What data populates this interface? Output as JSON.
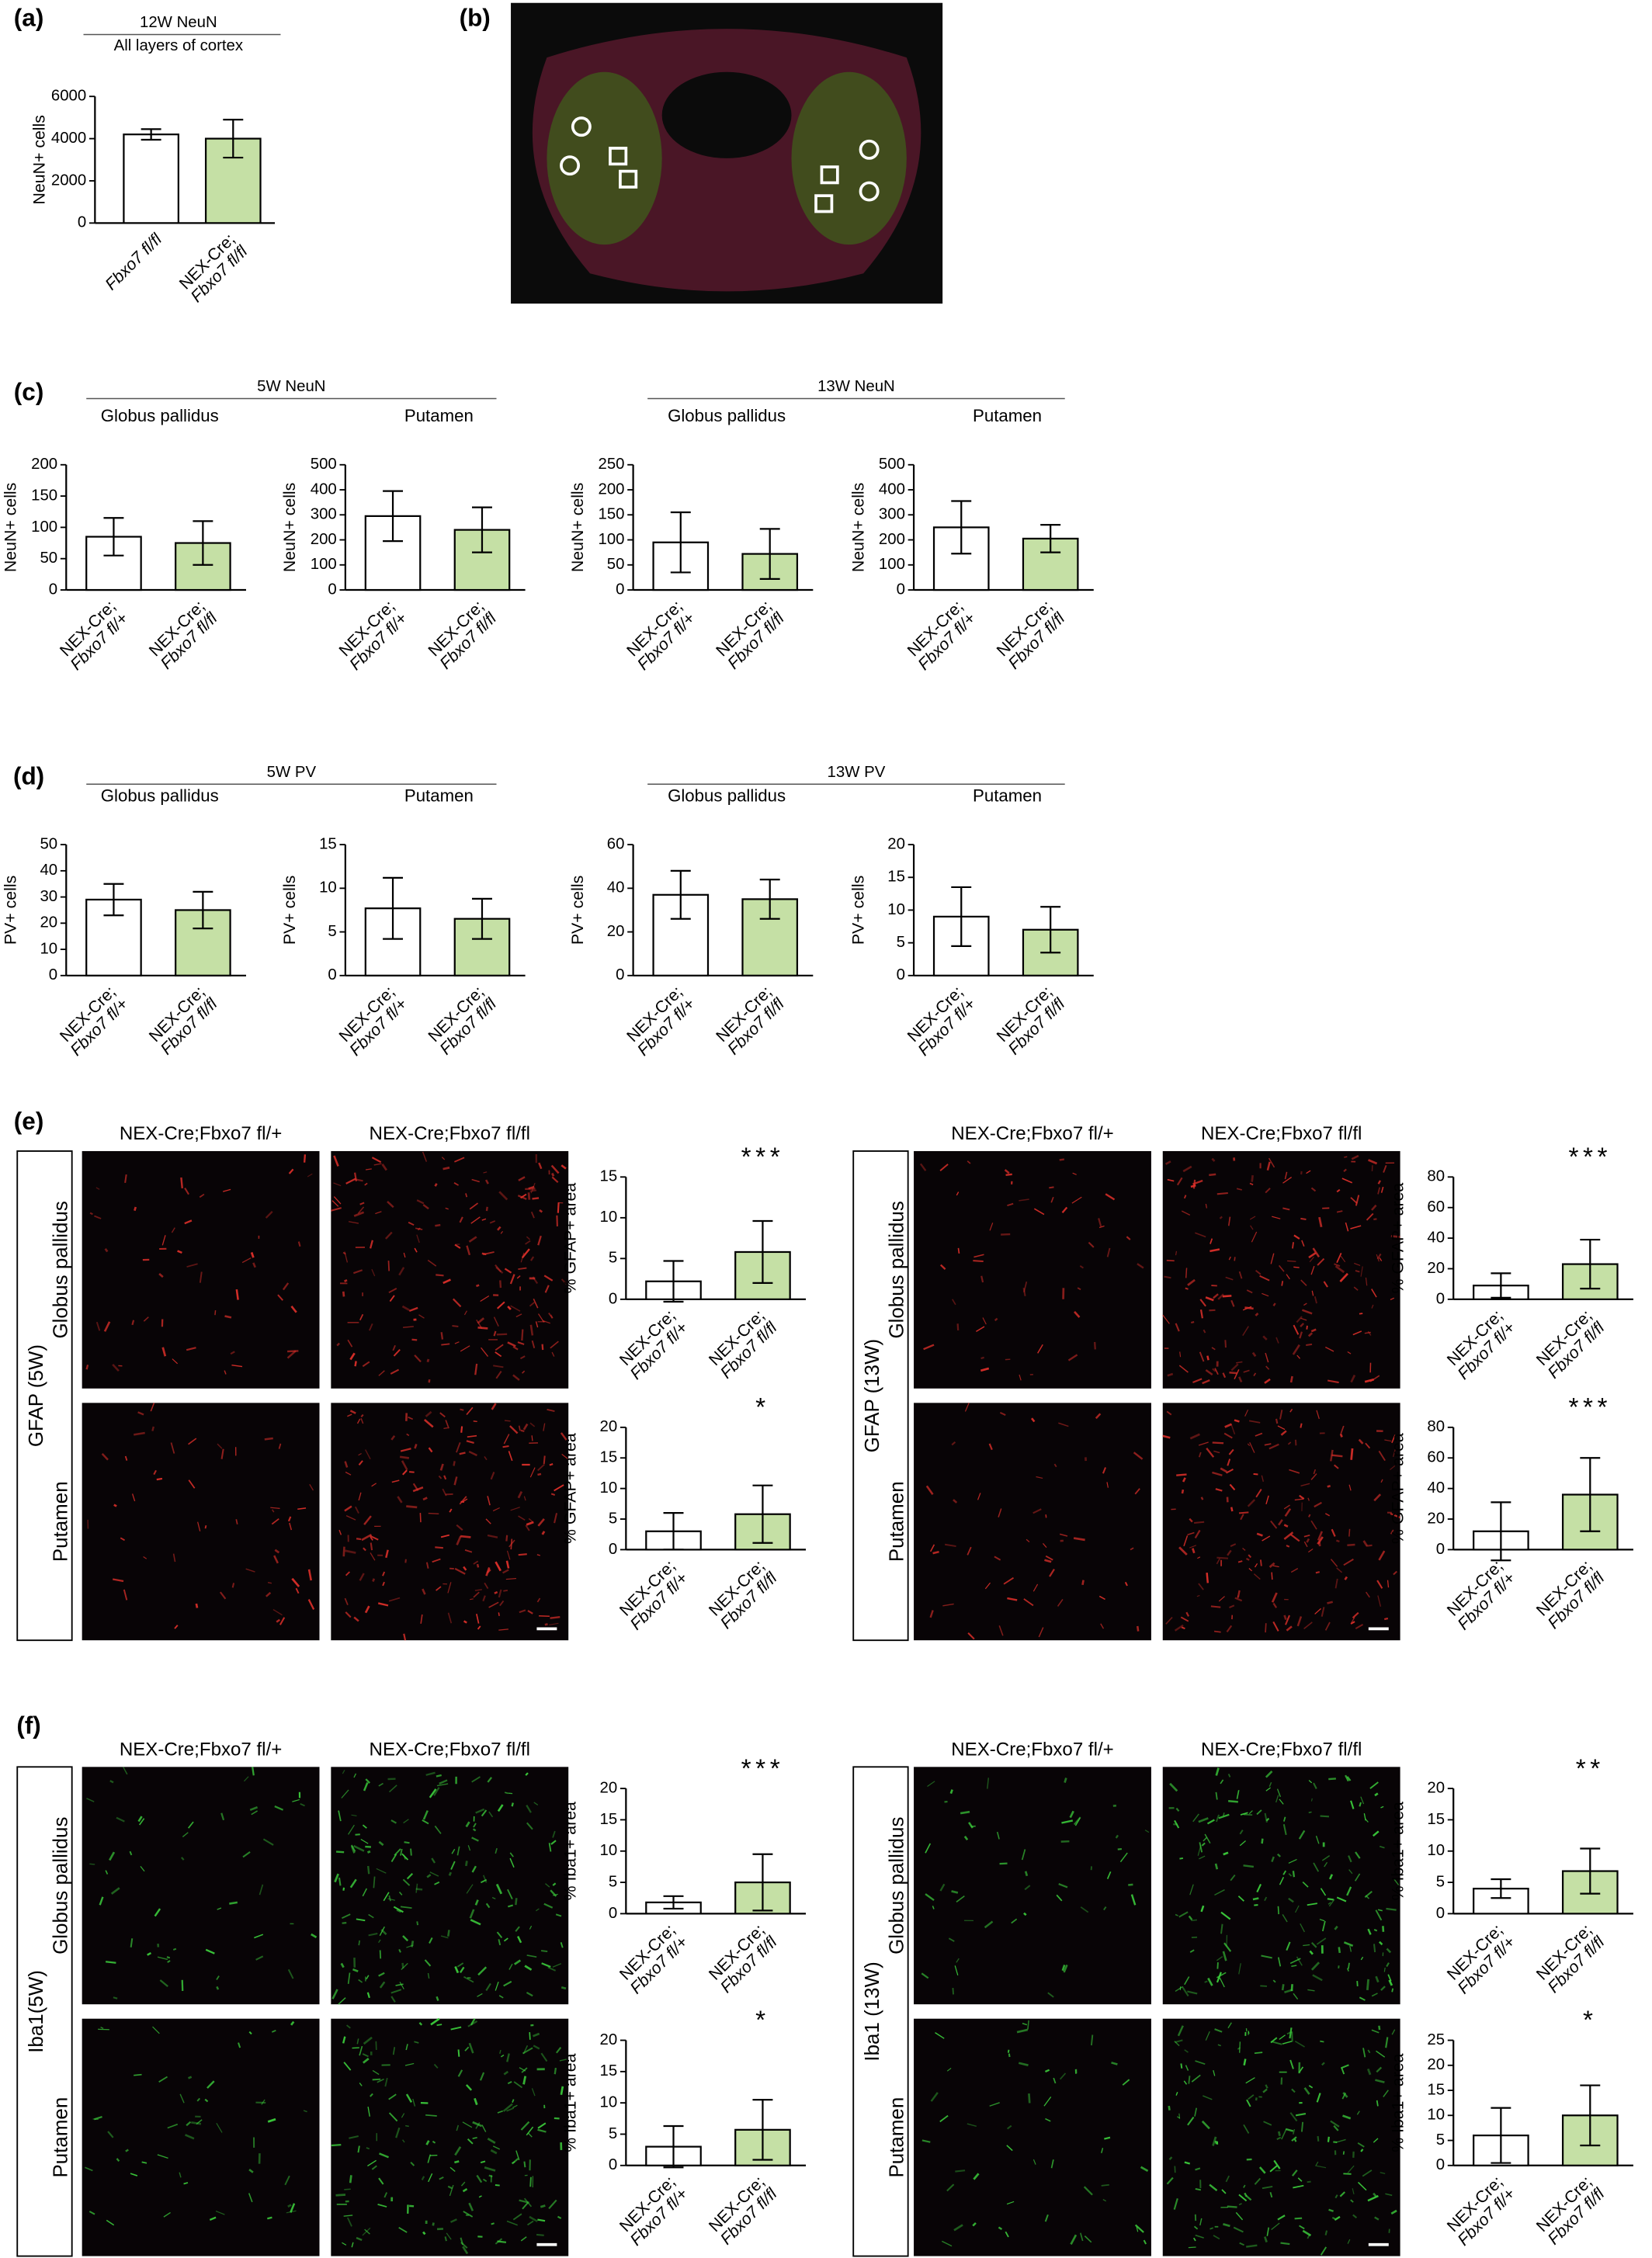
{
  "figure": {
    "panel_labels": [
      "(a)",
      "(b)",
      "(c)",
      "(d)",
      "(e)",
      "(f)"
    ],
    "headers": [
      "5W NeuN",
      "13W NeuN",
      "5W PV",
      "13W PV"
    ],
    "image_panels": [
      {
        "label": "GFAP (5W)",
        "columns": [
          "NEX-Cre;Fbxo7 fl/+",
          "NEX-Cre;Fbxo7 fl/fl"
        ],
        "rows": [
          "Globus pallidus",
          "Putamen"
        ]
      },
      {
        "label": "GFAP (13W)",
        "columns": [
          "NEX-Cre;Fbxo7 fl/+",
          "NEX-Cre;Fbxo7 fl/fl"
        ],
        "rows": [
          "Globus pallidus",
          "Putamen"
        ]
      },
      {
        "label": "Iba1(5W)",
        "columns": [
          "NEX-Cre;Fbxo7 fl/+",
          "NEX-Cre;Fbxo7 fl/fl"
        ],
        "rows": [
          "Globus pallidus",
          "Putamen"
        ]
      },
      {
        "label": "Iba1 (13W)",
        "columns": [
          "NEX-Cre;Fbxo7 fl/+",
          "NEX-Cre;Fbxo7 fl/fl"
        ],
        "rows": [
          "Globus pallidus",
          "Putamen"
        ]
      }
    ]
  },
  "chart_data": [
    {
      "type": "bar",
      "title": "12W NeuN",
      "subtitle": "All layers of cortex",
      "ylabel": "NeuN+ cells",
      "categories": [
        [
          "Fbxo7 fl/fl"
        ],
        [
          "NEX-Cre;",
          "Fbxo7 fl/fl"
        ]
      ],
      "values": [
        4200,
        4000
      ],
      "errors": [
        250,
        900
      ],
      "colors": [
        "#ffffff",
        "#c5e0a5"
      ],
      "ylim": [
        0,
        6000
      ],
      "yticks": [
        0,
        2000,
        4000,
        6000
      ]
    },
    {
      "type": "bar",
      "subtitle": "Globus pallidus",
      "ylabel": "NeuN+ cells",
      "categories": [
        [
          "NEX-Cre;",
          "Fbxo7 fl/+"
        ],
        [
          "NEX-Cre;",
          "Fbxo7 fl/fl"
        ]
      ],
      "values": [
        85,
        75
      ],
      "errors": [
        30,
        35
      ],
      "colors": [
        "#ffffff",
        "#c5e0a5"
      ],
      "ylim": [
        0,
        200
      ],
      "yticks": [
        0,
        50,
        100,
        150,
        200
      ]
    },
    {
      "type": "bar",
      "subtitle": "Putamen",
      "ylabel": "NeuN+ cells",
      "categories": [
        [
          "NEX-Cre;",
          "Fbxo7 fl/+"
        ],
        [
          "NEX-Cre;",
          "Fbxo7 fl/fl"
        ]
      ],
      "values": [
        295,
        240
      ],
      "errors": [
        100,
        90
      ],
      "colors": [
        "#ffffff",
        "#c5e0a5"
      ],
      "ylim": [
        0,
        500
      ],
      "yticks": [
        0,
        100,
        200,
        300,
        400,
        500
      ]
    },
    {
      "type": "bar",
      "subtitle": "Globus pallidus",
      "ylabel": "NeuN+ cells",
      "categories": [
        [
          "NEX-Cre;",
          "Fbxo7 fl/+"
        ],
        [
          "NEX-Cre;",
          "Fbxo7 fl/fl"
        ]
      ],
      "values": [
        95,
        72
      ],
      "errors": [
        60,
        50
      ],
      "colors": [
        "#ffffff",
        "#c5e0a5"
      ],
      "ylim": [
        0,
        250
      ],
      "yticks": [
        0,
        50,
        100,
        150,
        200,
        250
      ]
    },
    {
      "type": "bar",
      "subtitle": "Putamen",
      "ylabel": "NeuN+ cells",
      "categories": [
        [
          "NEX-Cre;",
          "Fbxo7 fl/+"
        ],
        [
          "NEX-Cre;",
          "Fbxo7 fl/fl"
        ]
      ],
      "values": [
        250,
        205
      ],
      "errors": [
        105,
        55
      ],
      "colors": [
        "#ffffff",
        "#c5e0a5"
      ],
      "ylim": [
        0,
        500
      ],
      "yticks": [
        0,
        100,
        200,
        300,
        400,
        500
      ]
    },
    {
      "type": "bar",
      "subtitle": "Globus pallidus",
      "ylabel": "PV+ cells",
      "categories": [
        [
          "NEX-Cre;",
          "Fbxo7 fl/+"
        ],
        [
          "NEX-Cre;",
          "Fbxo7 fl/fl"
        ]
      ],
      "values": [
        29,
        25
      ],
      "errors": [
        6,
        7
      ],
      "colors": [
        "#ffffff",
        "#c5e0a5"
      ],
      "ylim": [
        0,
        50
      ],
      "yticks": [
        0,
        10,
        20,
        30,
        40,
        50
      ]
    },
    {
      "type": "bar",
      "subtitle": "Putamen",
      "ylabel": "PV+ cells",
      "categories": [
        [
          "NEX-Cre;",
          "Fbxo7 fl/+"
        ],
        [
          "NEX-Cre;",
          "Fbxo7 fl/fl"
        ]
      ],
      "values": [
        7.7,
        6.5
      ],
      "errors": [
        3.5,
        2.3
      ],
      "colors": [
        "#ffffff",
        "#c5e0a5"
      ],
      "ylim": [
        0,
        15
      ],
      "yticks": [
        0,
        5,
        10,
        15
      ]
    },
    {
      "type": "bar",
      "subtitle": "Globus pallidus",
      "ylabel": "PV+ cells",
      "categories": [
        [
          "NEX-Cre;",
          "Fbxo7 fl/+"
        ],
        [
          "NEX-Cre;",
          "Fbxo7 fl/fl"
        ]
      ],
      "values": [
        37,
        35
      ],
      "errors": [
        11,
        9
      ],
      "colors": [
        "#ffffff",
        "#c5e0a5"
      ],
      "ylim": [
        0,
        60
      ],
      "yticks": [
        0,
        20,
        40,
        60
      ]
    },
    {
      "type": "bar",
      "subtitle": "Putamen",
      "ylabel": "PV+ cells",
      "categories": [
        [
          "NEX-Cre;",
          "Fbxo7 fl/+"
        ],
        [
          "NEX-Cre;",
          "Fbxo7 fl/fl"
        ]
      ],
      "values": [
        9,
        7
      ],
      "errors": [
        4.5,
        3.5
      ],
      "colors": [
        "#ffffff",
        "#c5e0a5"
      ],
      "ylim": [
        0,
        20
      ],
      "yticks": [
        0,
        5,
        10,
        15,
        20
      ]
    },
    {
      "type": "bar",
      "ylabel": "% GFAP+ area",
      "significance": "***",
      "categories": [
        [
          "NEX-Cre;",
          "Fbxo7 fl/+"
        ],
        [
          "NEX-Cre;",
          "Fbxo7 fl/fl"
        ]
      ],
      "values": [
        2.2,
        5.8
      ],
      "errors": [
        2.5,
        3.8
      ],
      "colors": [
        "#ffffff",
        "#c5e0a5"
      ],
      "ylim": [
        0,
        15
      ],
      "yticks": [
        0,
        5,
        10,
        15
      ]
    },
    {
      "type": "bar",
      "ylabel": "% GFAP+ area",
      "significance": "*",
      "categories": [
        [
          "NEX-Cre;",
          "Fbxo7 fl/+"
        ],
        [
          "NEX-Cre;",
          "Fbxo7 fl/fl"
        ]
      ],
      "values": [
        3,
        5.8
      ],
      "errors": [
        3,
        4.7
      ],
      "colors": [
        "#ffffff",
        "#c5e0a5"
      ],
      "ylim": [
        0,
        20
      ],
      "yticks": [
        0,
        5,
        10,
        15,
        20
      ]
    },
    {
      "type": "bar",
      "ylabel": "% GFAP+ area",
      "significance": "***",
      "categories": [
        [
          "NEX-Cre;",
          "Fbxo7 fl/+"
        ],
        [
          "NEX-Cre;",
          "Fbxo7 fl/fl"
        ]
      ],
      "values": [
        9,
        23
      ],
      "errors": [
        8,
        16
      ],
      "colors": [
        "#ffffff",
        "#c5e0a5"
      ],
      "ylim": [
        0,
        80
      ],
      "yticks": [
        0,
        20,
        40,
        60,
        80
      ]
    },
    {
      "type": "bar",
      "ylabel": "% GFAP+ area",
      "significance": "***",
      "categories": [
        [
          "NEX-Cre;",
          "Fbxo7 fl/+"
        ],
        [
          "NEX-Cre;",
          "Fbxo7 fl/fl"
        ]
      ],
      "values": [
        12,
        36
      ],
      "errors": [
        19,
        24
      ],
      "colors": [
        "#ffffff",
        "#c5e0a5"
      ],
      "ylim": [
        0,
        80
      ],
      "yticks": [
        0,
        20,
        40,
        60,
        80
      ]
    },
    {
      "type": "bar",
      "ylabel": "% Iba1+ area",
      "significance": "***",
      "categories": [
        [
          "NEX-Cre;",
          "Fbxo7 fl/+"
        ],
        [
          "NEX-Cre;",
          "Fbxo7 fl/fl"
        ]
      ],
      "values": [
        1.8,
        5
      ],
      "errors": [
        1,
        4.5
      ],
      "colors": [
        "#ffffff",
        "#c5e0a5"
      ],
      "ylim": [
        0,
        20
      ],
      "yticks": [
        0,
        5,
        10,
        15,
        20
      ]
    },
    {
      "type": "bar",
      "ylabel": "% Iba1+ area",
      "significance": "*",
      "categories": [
        [
          "NEX-Cre;",
          "Fbxo7 fl/+"
        ],
        [
          "NEX-Cre;",
          "Fbxo7 fl/fl"
        ]
      ],
      "values": [
        3,
        5.7
      ],
      "errors": [
        3.3,
        4.8
      ],
      "colors": [
        "#ffffff",
        "#c5e0a5"
      ],
      "ylim": [
        0,
        20
      ],
      "yticks": [
        0,
        5,
        10,
        15,
        20
      ]
    },
    {
      "type": "bar",
      "ylabel": "% Iba1+ area",
      "significance": "**",
      "categories": [
        [
          "NEX-Cre;",
          "Fbxo7 fl/+"
        ],
        [
          "NEX-Cre;",
          "Fbxo7 fl/fl"
        ]
      ],
      "values": [
        4,
        6.8
      ],
      "errors": [
        1.5,
        3.6
      ],
      "colors": [
        "#ffffff",
        "#c5e0a5"
      ],
      "ylim": [
        0,
        20
      ],
      "yticks": [
        0,
        5,
        10,
        15,
        20
      ]
    },
    {
      "type": "bar",
      "ylabel": "% Iba1+ area",
      "significance": "*",
      "categories": [
        [
          "NEX-Cre;",
          "Fbxo7 fl/+"
        ],
        [
          "NEX-Cre;",
          "Fbxo7 fl/fl"
        ]
      ],
      "values": [
        6,
        10
      ],
      "errors": [
        5.5,
        6
      ],
      "colors": [
        "#ffffff",
        "#c5e0a5"
      ],
      "ylim": [
        0,
        25
      ],
      "yticks": [
        0,
        5,
        10,
        15,
        20,
        25
      ]
    }
  ]
}
